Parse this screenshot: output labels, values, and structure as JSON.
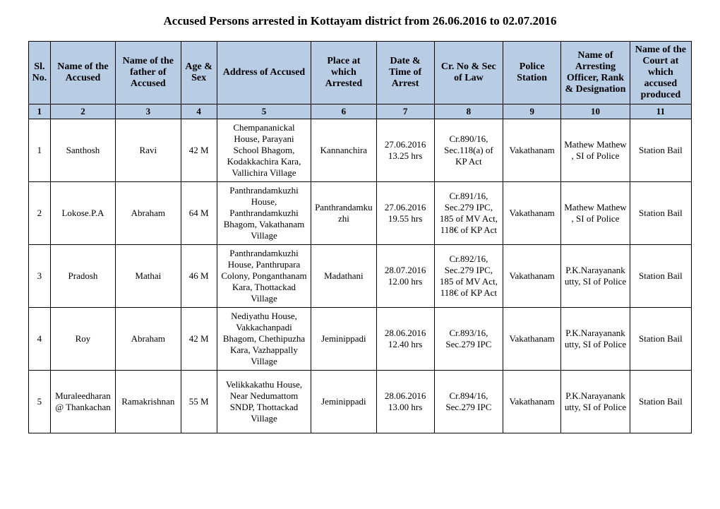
{
  "title": "Accused Persons arrested in   Kottayam  district from   26.06.2016 to 02.07.2016",
  "headers": [
    "Sl. No.",
    "Name of the Accused",
    "Name of the father of Accused",
    "Age & Sex",
    "Address of Accused",
    "Place at which Arrested",
    "Date & Time of Arrest",
    "Cr. No & Sec of Law",
    "Police Station",
    "Name of Arresting Officer, Rank & Designation",
    "Name of the Court at which accused produced"
  ],
  "colnums": [
    "1",
    "2",
    "3",
    "4",
    "5",
    "6",
    "7",
    "8",
    "9",
    "10",
    "11"
  ],
  "rows": [
    {
      "sl": "1",
      "accused": "Santhosh",
      "father": "Ravi",
      "age": "42 M",
      "address": "Chempananickal House, Parayani School Bhagom, Kodakkachira Kara, Vallichira Village",
      "place": "Kannanchira",
      "datetime": "27.06.2016 13.25 hrs",
      "crno": "Cr.890/16, Sec.118(a) of KP Act",
      "station": "Vakathanam",
      "officer": "Mathew Mathew , SI of Police",
      "court": "Station Bail"
    },
    {
      "sl": "2",
      "accused": "Lokose.P.A",
      "father": "Abraham",
      "age": "64 M",
      "address": "Panthrandamkuzhi House, Panthrandamkuzhi Bhagom, Vakathanam Village",
      "place": "Panthrandamkuzhi",
      "datetime": "27.06.2016 19.55 hrs",
      "crno": "Cr.891/16, Sec.279 IPC, 185 of MV Act, 118€ of KP Act",
      "station": "Vakathanam",
      "officer": "Mathew Mathew , SI of Police",
      "court": "Station Bail"
    },
    {
      "sl": "3",
      "accused": "Pradosh",
      "father": "Mathai",
      "age": "46 M",
      "address": "Panthrandamkuzhi House, Panthrupara Colony, Ponganthanam Kara, Thottackad Village",
      "place": "Madathani",
      "datetime": "28.07.2016 12.00 hrs",
      "crno": "Cr.892/16, Sec.279 IPC, 185 of MV Act, 118€ of KP Act",
      "station": "Vakathanam",
      "officer": "P.K.Narayanankutty,  SI of Police",
      "court": "Station Bail"
    },
    {
      "sl": "4",
      "accused": "Roy",
      "father": "Abraham",
      "age": "42 M",
      "address": "Nediyathu House, Vakkachanpadi Bhagom, Chethipuzha Kara, Vazhappally Village",
      "place": "Jeminippadi",
      "datetime": "28.06.2016 12.40 hrs",
      "crno": "Cr.893/16, Sec.279 IPC",
      "station": "Vakathanam",
      "officer": "P.K.Narayanankutty,  SI of Police",
      "court": "Station Bail"
    },
    {
      "sl": "5",
      "accused": "Muraleedharan @ Thankachan",
      "father": "Ramakrishnan",
      "age": "55 M",
      "address": "Velikkakathu House, Near Nedumattom SNDP, Thottackad Village",
      "place": "Jeminippadi",
      "datetime": "28.06.2016 13.00 hrs",
      "crno": "Cr.894/16, Sec.279 IPC",
      "station": "Vakathanam",
      "officer": "P.K.Narayanankutty,  SI of Police",
      "court": "Station Bail"
    }
  ]
}
